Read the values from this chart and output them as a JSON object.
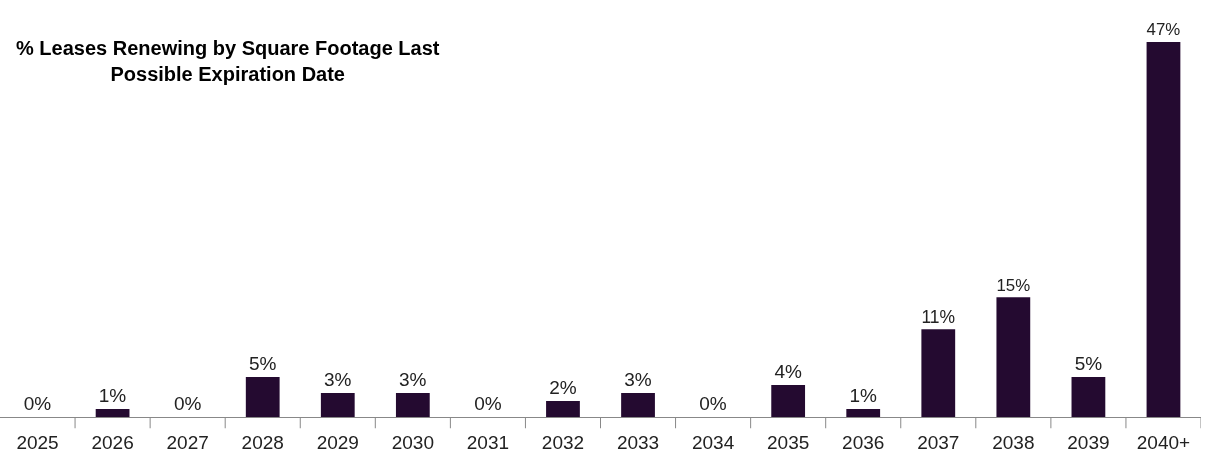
{
  "chart_data": {
    "type": "bar",
    "title": "% Leases Renewing by Square Footage Last\nPossible Expiration Date",
    "categories": [
      "2025",
      "2026",
      "2027",
      "2028",
      "2029",
      "2030",
      "2031",
      "2032",
      "2033",
      "2034",
      "2035",
      "2036",
      "2037",
      "2038",
      "2039",
      "2040+"
    ],
    "values": [
      0,
      1,
      0,
      5,
      3,
      3,
      0,
      2,
      3,
      0,
      4,
      1,
      11,
      15,
      5,
      47
    ],
    "value_labels": [
      "0%",
      "1%",
      "0%",
      "5%",
      "3%",
      "3%",
      "0%",
      "2%",
      "3%",
      "0%",
      "4%",
      "1%",
      "11%",
      "15%",
      "5%",
      "47%"
    ],
    "color": "#240a30",
    "legend": false
  }
}
